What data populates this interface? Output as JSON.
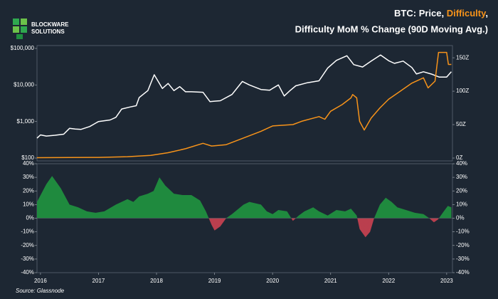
{
  "header": {
    "logo": [
      "BLOCKWARE",
      "SOLUTIONS"
    ],
    "title_line1": [
      "BTC: Price, ",
      "Difficulty",
      ","
    ],
    "title_line2": "Difficulty MoM % Change (90D Moving Avg.)",
    "source": "Source: Glassnode"
  },
  "chart_data": [
    {
      "type": "line",
      "ylog": true,
      "xlim": [
        2015.94,
        2023.1
      ],
      "ylim": [
        100,
        100000
      ],
      "yticks": [
        {
          "value": 100,
          "label": "$100"
        },
        {
          "value": 1000,
          "label": "$1,000"
        },
        {
          "value": 10000,
          "label": "$10,000"
        },
        {
          "value": 100000,
          "label": "$100,000"
        }
      ],
      "y2lim": [
        0,
        164
      ],
      "y2ticks": [
        {
          "value": 0,
          "label": "0Z"
        },
        {
          "value": 50,
          "label": "50Z"
        },
        {
          "value": 100,
          "label": "100Z"
        },
        {
          "value": 150,
          "label": "150Z"
        }
      ],
      "series": [
        {
          "color": "#ffffff",
          "x": [
            2015.94,
            2016.0,
            2016.1,
            2016.25,
            2016.4,
            2016.5,
            2016.6,
            2016.7,
            2016.85,
            2016.95,
            2017.0,
            2017.1,
            2017.2,
            2017.3,
            2017.4,
            2017.55,
            2017.65,
            2017.7,
            2017.85,
            2017.96,
            2018.05,
            2018.1,
            2018.2,
            2018.3,
            2018.4,
            2018.5,
            2018.6,
            2018.8,
            2018.92,
            2019.0,
            2019.1,
            2019.3,
            2019.48,
            2019.6,
            2019.8,
            2019.95,
            2020.1,
            2020.2,
            2020.3,
            2020.4,
            2020.6,
            2020.8,
            2020.95,
            2021.1,
            2021.28,
            2021.4,
            2021.55,
            2021.7,
            2021.86,
            2022.0,
            2022.1,
            2022.25,
            2022.4,
            2022.48,
            2022.6,
            2022.75,
            2022.87,
            2023.0,
            2023.08
          ],
          "values": [
            350,
            430,
            400,
            420,
            450,
            650,
            620,
            610,
            730,
            900,
            1000,
            1050,
            1100,
            1300,
            2200,
            2500,
            2700,
            4500,
            7000,
            19000,
            11000,
            8000,
            11000,
            7000,
            9000,
            6500,
            6500,
            6300,
            3500,
            3600,
            3700,
            5500,
            12500,
            10000,
            7500,
            7200,
            10000,
            5000,
            7000,
            9500,
            11500,
            13000,
            29000,
            47000,
            63000,
            36000,
            31000,
            45000,
            66000,
            46000,
            39000,
            45000,
            30000,
            20000,
            23000,
            19500,
            16500,
            16500,
            23000
          ]
        },
        {
          "color": "#f7931a",
          "axis": "y2",
          "x": [
            2015.94,
            2016.5,
            2017.0,
            2017.5,
            2017.9,
            2018.2,
            2018.5,
            2018.8,
            2018.95,
            2019.2,
            2019.5,
            2019.8,
            2020.0,
            2020.35,
            2020.5,
            2020.8,
            2020.9,
            2021.0,
            2021.2,
            2021.35,
            2021.38,
            2021.45,
            2021.5,
            2021.58,
            2021.7,
            2021.85,
            2022.0,
            2022.2,
            2022.4,
            2022.6,
            2022.68,
            2022.8,
            2022.86,
            2023.0,
            2023.03,
            2023.08
          ],
          "values": [
            0.5,
            0.7,
            1,
            2,
            4,
            8,
            14,
            22,
            18,
            20,
            30,
            40,
            48,
            50,
            55,
            62,
            58,
            70,
            80,
            90,
            95,
            90,
            55,
            42,
            60,
            75,
            88,
            100,
            112,
            120,
            105,
            115,
            158,
            158,
            140,
            140
          ]
        }
      ]
    },
    {
      "type": "area",
      "xlim": [
        2015.94,
        2023.1
      ],
      "ylim": [
        -40,
        40
      ],
      "mirror_yticks": true,
      "xticks": [
        2016,
        2017,
        2018,
        2019,
        2020,
        2021,
        2022,
        2023
      ],
      "yticks": [
        {
          "value": -40,
          "label": "-40%"
        },
        {
          "value": -30,
          "label": "-30%"
        },
        {
          "value": -20,
          "label": "-20%"
        },
        {
          "value": -10,
          "label": "-10%"
        },
        {
          "value": 0,
          "label": "0%"
        },
        {
          "value": 10,
          "label": "10%"
        },
        {
          "value": 20,
          "label": "20%"
        },
        {
          "value": 30,
          "label": "30%"
        },
        {
          "value": 40,
          "label": "40%"
        }
      ],
      "color_positive": "#1f8f3f",
      "color_negative": "#c2404f",
      "x": [
        2015.94,
        2016.1,
        2016.2,
        2016.35,
        2016.5,
        2016.65,
        2016.8,
        2016.95,
        2017.1,
        2017.3,
        2017.5,
        2017.6,
        2017.7,
        2017.85,
        2017.95,
        2018.05,
        2018.15,
        2018.3,
        2018.45,
        2018.6,
        2018.75,
        2018.85,
        2018.95,
        2019.0,
        2019.1,
        2019.2,
        2019.3,
        2019.5,
        2019.6,
        2019.7,
        2019.8,
        2019.9,
        2020.0,
        2020.1,
        2020.25,
        2020.35,
        2020.45,
        2020.55,
        2020.7,
        2020.8,
        2020.95,
        2021.1,
        2021.25,
        2021.35,
        2021.45,
        2021.5,
        2021.6,
        2021.68,
        2021.75,
        2021.85,
        2021.95,
        2022.05,
        2022.15,
        2022.3,
        2022.45,
        2022.6,
        2022.7,
        2022.78,
        2022.85,
        2022.95,
        2023.02,
        2023.08
      ],
      "values": [
        12,
        25,
        31,
        22,
        10,
        8,
        5,
        4,
        5,
        10,
        14,
        12,
        16,
        18,
        20,
        30,
        24,
        18,
        17,
        17,
        13,
        5,
        -5,
        -9,
        -6,
        0,
        3,
        10,
        12,
        11,
        10,
        5,
        3,
        6,
        5,
        -2,
        2,
        5,
        8,
        5,
        2,
        6,
        5,
        7,
        2,
        -8,
        -14,
        -10,
        0,
        10,
        15,
        12,
        8,
        6,
        4,
        3,
        0,
        -3,
        -1,
        5,
        9,
        8
      ]
    }
  ]
}
